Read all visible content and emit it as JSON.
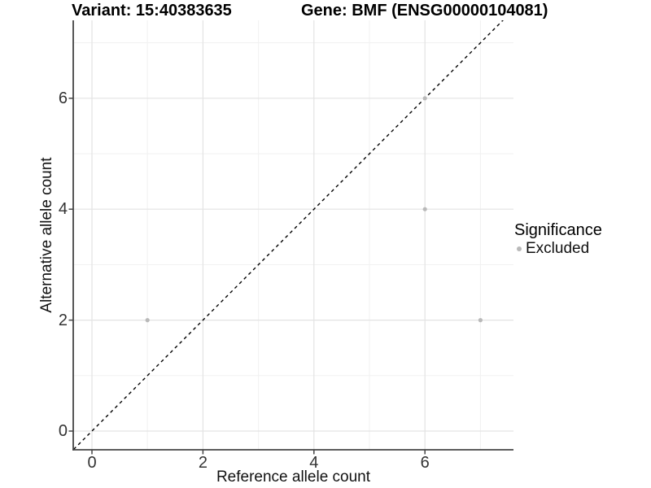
{
  "titles": {
    "variant": "Variant: 15:40383635",
    "gene": "Gene: BMF (ENSG00000104081)"
  },
  "x_axis": {
    "title": "Reference allele count",
    "tick_labels": [
      "0",
      "2",
      "4",
      "6"
    ]
  },
  "y_axis": {
    "title": "Alternative allele count",
    "tick_labels": [
      "0",
      "2",
      "4",
      "6"
    ]
  },
  "legend": {
    "title": "Significance",
    "items": [
      {
        "label": "Excluded",
        "marker": "circle",
        "color": "#b9b9b9"
      }
    ]
  },
  "colors": {
    "background": "#ffffff",
    "point": "#b9b9b9",
    "axis_line": "#444444",
    "tick_mark": "#444444",
    "tick_label": "#333333",
    "grid_major": "#e3e3e3",
    "grid_minor": "#f1f1f1",
    "identity_line": "#000000"
  },
  "chart_data": {
    "type": "scatter",
    "title": "Variant: 15:40383635 | Gene: BMF (ENSG00000104081)",
    "xlabel": "Reference allele count",
    "ylabel": "Alternative allele count",
    "xlim": [
      -0.35,
      7.55
    ],
    "ylim": [
      -0.35,
      7.4
    ],
    "x_ticks": [
      0,
      2,
      4,
      6
    ],
    "y_ticks": [
      0,
      2,
      4,
      6
    ],
    "x_minor_ticks": [
      1,
      3,
      5,
      7
    ],
    "y_minor_ticks": [
      1,
      3,
      5,
      7
    ],
    "grid": "major+minor",
    "legend_position": "right-middle",
    "series": [
      {
        "name": "Excluded",
        "color": "#b9b9b9",
        "points": [
          [
            1,
            2
          ],
          [
            6,
            4
          ],
          [
            6,
            6
          ],
          [
            7,
            2
          ]
        ]
      }
    ],
    "annotations": [
      {
        "type": "abline",
        "slope": 1,
        "intercept": 0,
        "style": "dashed",
        "color": "#000000",
        "span": [
          -0.33,
          7.42
        ]
      }
    ]
  }
}
